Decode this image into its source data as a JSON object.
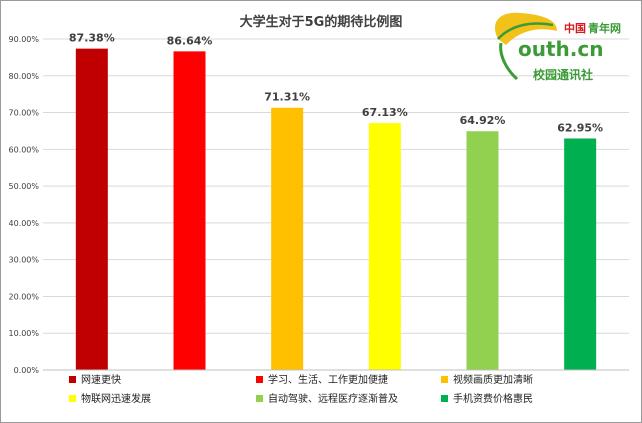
{
  "chart_data": {
    "type": "bar",
    "title": "大学生对于5G的期待比例图",
    "categories": [
      "网速更快",
      "学习、生活、工作更加便捷",
      "视频画质更加清晰",
      "物联网迅速发展",
      "自动驾驶、远程医疗逐渐普及",
      "手机资费价格惠民"
    ],
    "values": [
      87.38,
      86.64,
      71.31,
      67.13,
      64.92,
      62.95
    ],
    "data_labels": [
      "87.38%",
      "86.64%",
      "71.31%",
      "67.13%",
      "64.92%",
      "62.95%"
    ],
    "colors": [
      "#c00000",
      "#ff0000",
      "#ffc000",
      "#ffff00",
      "#92d050",
      "#00b050"
    ],
    "ylim": [
      0,
      90
    ],
    "yticks": [
      "0.00%",
      "10.00%",
      "20.00%",
      "30.00%",
      "40.00%",
      "50.00%",
      "60.00%",
      "70.00%",
      "80.00%",
      "90.00%"
    ],
    "grid": true,
    "legend_position": "bottom"
  },
  "logo": {
    "text_china": "中国",
    "text_qingnianwang": "青年网",
    "text_domain": "outh.cn",
    "text_agency": "校园通讯社",
    "icon": "ginkgo-leaf-icon",
    "red": "#d7191c",
    "green": "#3a9b37",
    "yellow": "#f2c21b"
  }
}
